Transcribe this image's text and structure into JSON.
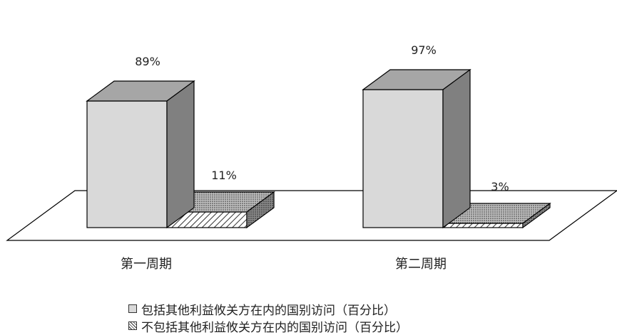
{
  "chart_data": {
    "type": "bar",
    "categories": [
      "第一周期",
      "第二周期"
    ],
    "series": [
      {
        "name": "包括其他利益攸关方在内的国别访问（百分比）",
        "values": [
          89,
          97
        ],
        "labels": [
          "89%",
          "97%"
        ],
        "pattern": "solid"
      },
      {
        "name": "不包括其他利益攸关方在内的国别访问（百分比）",
        "values": [
          11,
          3
        ],
        "labels": [
          "11%",
          "3%"
        ],
        "pattern": "hatch"
      }
    ],
    "ylim": [
      0,
      100
    ],
    "legend": "bottom",
    "style": "3d",
    "colors": {
      "front": "#d9d9d9",
      "top": "#a6a6a6",
      "side": "#808080",
      "outline": "#000000"
    }
  }
}
